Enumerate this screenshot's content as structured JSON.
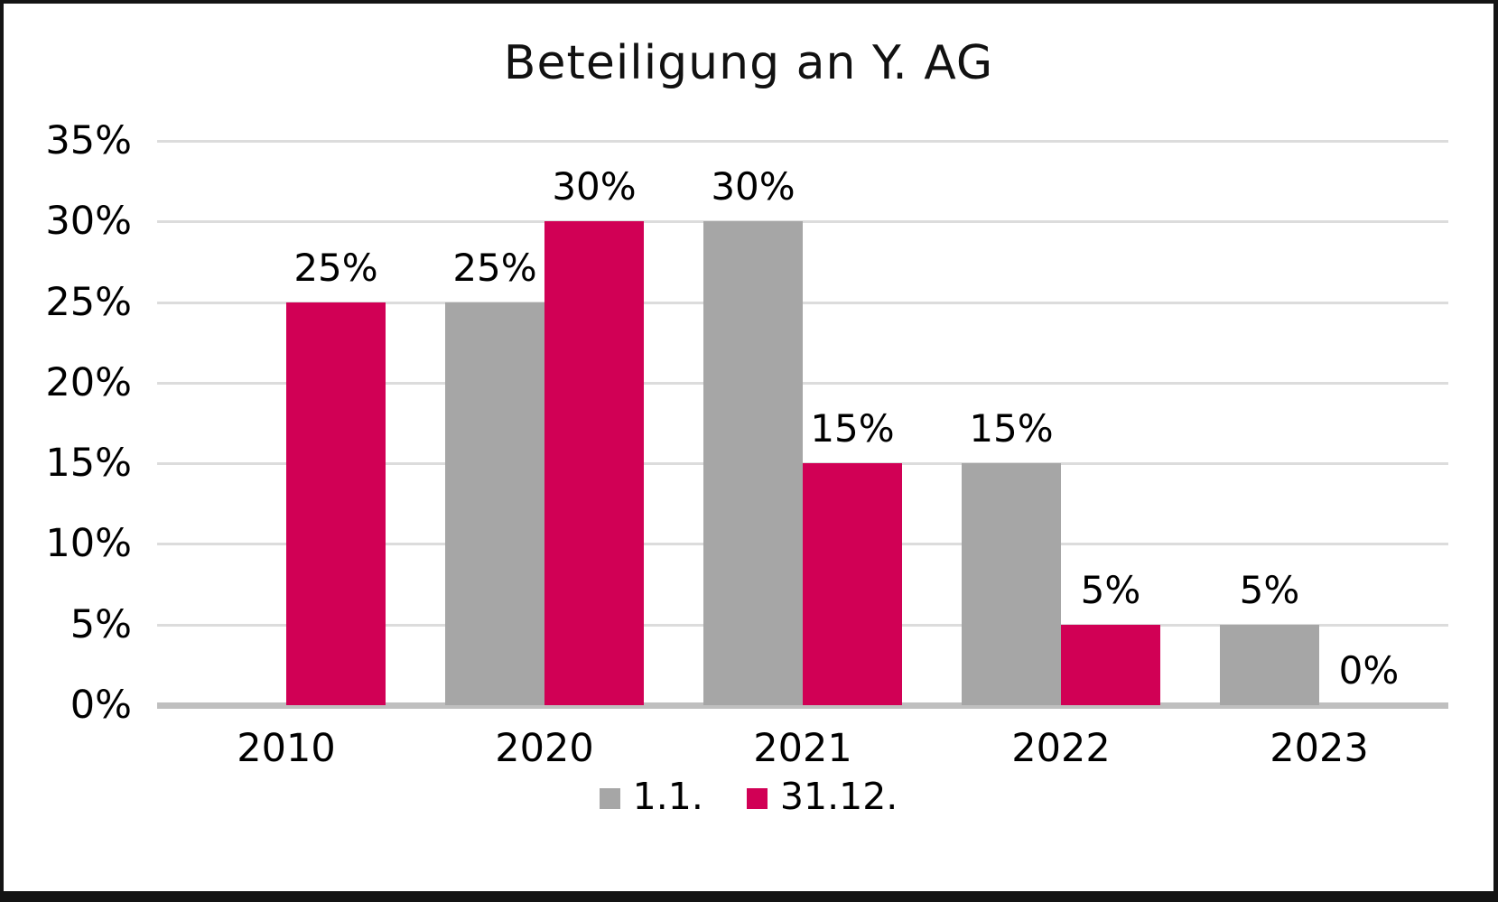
{
  "chart_data": {
    "type": "bar",
    "title": "Beteiligung an Y. AG",
    "categories": [
      "2010",
      "2020",
      "2021",
      "2022",
      "2023"
    ],
    "series": [
      {
        "name": "1.1.",
        "color": "#a6a6a6",
        "values": [
          null,
          25,
          30,
          15,
          5
        ],
        "labels": [
          null,
          "25%",
          "30%",
          "15%",
          "5%"
        ]
      },
      {
        "name": "31.12.",
        "color": "#d10055",
        "values": [
          25,
          30,
          15,
          5,
          0
        ],
        "labels": [
          "25%",
          "30%",
          "15%",
          "5%",
          "0%"
        ]
      }
    ],
    "y_axis": {
      "min": 0,
      "max": 35,
      "step": 5,
      "tick_labels": [
        "0%",
        "5%",
        "10%",
        "15%",
        "20%",
        "25%",
        "30%",
        "35%"
      ]
    },
    "legend_position": "bottom",
    "grid": true,
    "colors": {
      "gridline": "#dcdcdc",
      "axis_line": "#bfbfbf",
      "text": "#000000"
    }
  }
}
